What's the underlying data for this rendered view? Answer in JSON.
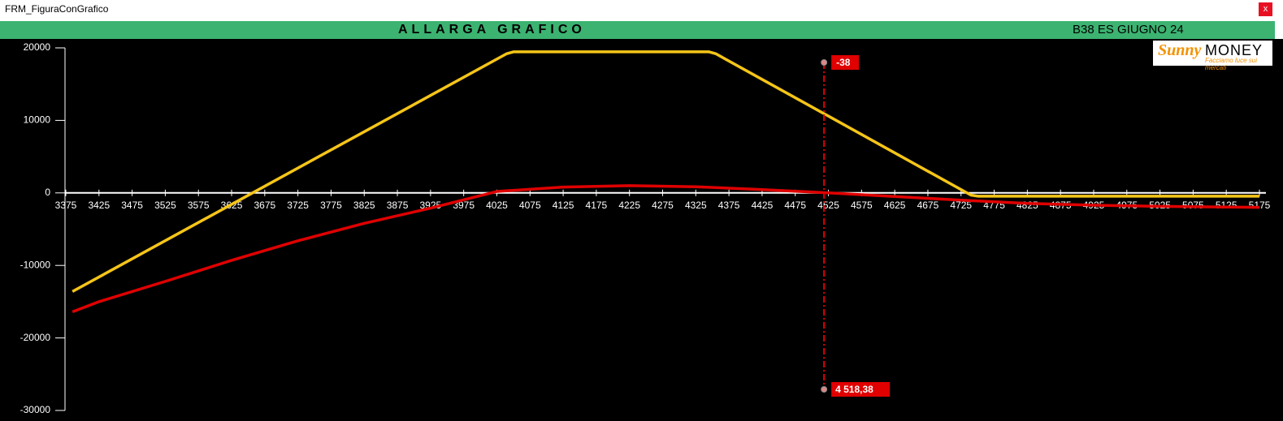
{
  "window": {
    "title": "FRM_FiguraConGrafico",
    "close": "x"
  },
  "header": {
    "button": "ALLARGA GRAFICO",
    "label": "B38 ES GIUGNO 24"
  },
  "logo": {
    "brand": "Sunny",
    "brand2": "MONEY",
    "tagline": "Facciamo luce sui mercati"
  },
  "chart_data": {
    "type": "line",
    "xlim": [
      3375,
      5175
    ],
    "xticks": [
      3375,
      3425,
      3475,
      3525,
      3575,
      3625,
      3675,
      3725,
      3775,
      3825,
      3875,
      3925,
      3975,
      4025,
      4075,
      4125,
      4175,
      4225,
      4275,
      4325,
      4375,
      4425,
      4475,
      4525,
      4575,
      4625,
      4675,
      4725,
      4775,
      4825,
      4875,
      4925,
      4975,
      5025,
      5075,
      5125,
      5175
    ],
    "ylim": [
      -30000,
      20000
    ],
    "yticks": [
      20000,
      10000,
      0,
      -10000,
      -20000,
      -30000
    ],
    "series": [
      {
        "color": "#e00000",
        "x": [
          3385,
          3425,
          3525,
          3625,
          3725,
          3825,
          3925,
          4025,
          4125,
          4225,
          4325,
          4425,
          4525,
          4625,
          4725,
          4825,
          4925,
          5025,
          5125,
          5175
        ],
        "values": [
          -16400,
          -15000,
          -12200,
          -9300,
          -6600,
          -4200,
          -2100,
          200,
          800,
          1000,
          850,
          450,
          0,
          -500,
          -1000,
          -1450,
          -1700,
          -1850,
          -1950,
          -2000
        ]
      },
      {
        "color": "#f5c518",
        "x": [
          3385,
          4040,
          4050,
          4345,
          4355,
          4740,
          4750,
          5175
        ],
        "values": [
          -13600,
          19200,
          19450,
          19450,
          19200,
          -300,
          -450,
          -450
        ]
      }
    ],
    "cursor": {
      "x": 4518.38,
      "x_label": "4 518,38",
      "y_label": "-38",
      "color": "#e00000"
    }
  }
}
